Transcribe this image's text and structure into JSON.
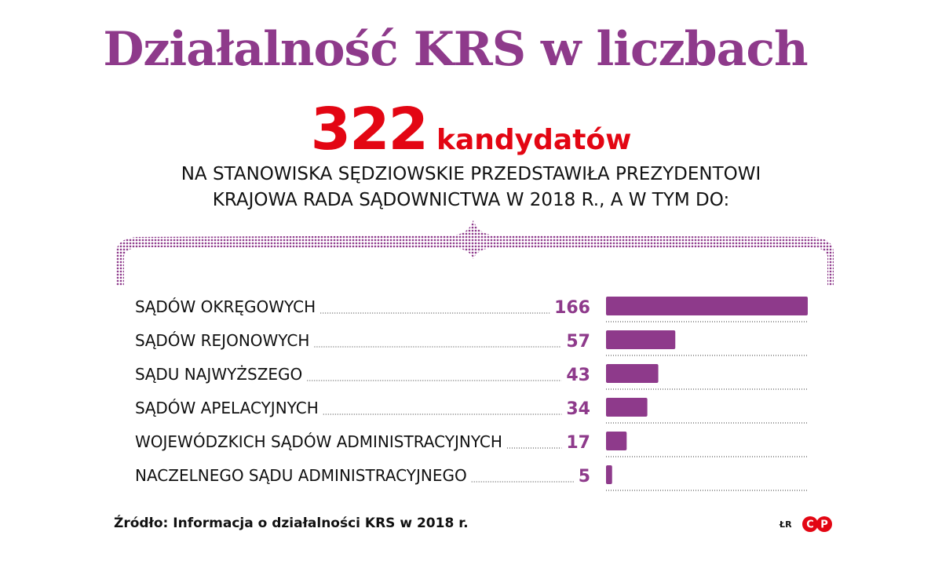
{
  "title": "Działalność KRS w liczbach",
  "headline": {
    "number": "322",
    "unit": "kandydatów"
  },
  "subtitle": {
    "line1": "NA STANOWISKA SĘDZIOWSKIE PRZEDSTAWIŁA PREZYDENTOWI",
    "line2": "KRAJOWA RADA SĄDOWNICTWA W 2018 R., A W TYM DO:"
  },
  "colors": {
    "accent": "#8e3a8b",
    "headline": "#e30613",
    "logo": "#e30613"
  },
  "chart_data": {
    "type": "bar",
    "orientation": "horizontal",
    "title": "",
    "xlabel": "",
    "ylabel": "",
    "xlim": [
      0,
      166
    ],
    "categories": [
      "SĄDÓW OKRĘGOWYCH",
      "SĄDÓW REJONOWYCH",
      "SĄDU NAJWYŻSZEGO",
      "SĄDÓW APELACYJNYCH",
      "WOJEWÓDZKICH SĄDÓW ADMINISTRACYJNYCH",
      "NACZELNEGO SĄDU ADMINISTRACYJNEGO"
    ],
    "values": [
      166,
      57,
      43,
      34,
      17,
      5
    ],
    "value_labels": [
      "166",
      "57",
      "43",
      "34",
      "17",
      "5"
    ],
    "grid": false,
    "legend": "none"
  },
  "source": "Źródło: Informacja o działalności KRS w 2018 r.",
  "author": "ŁR",
  "logo": {
    "icon": "cp-logo-icon",
    "letters": "CP"
  }
}
